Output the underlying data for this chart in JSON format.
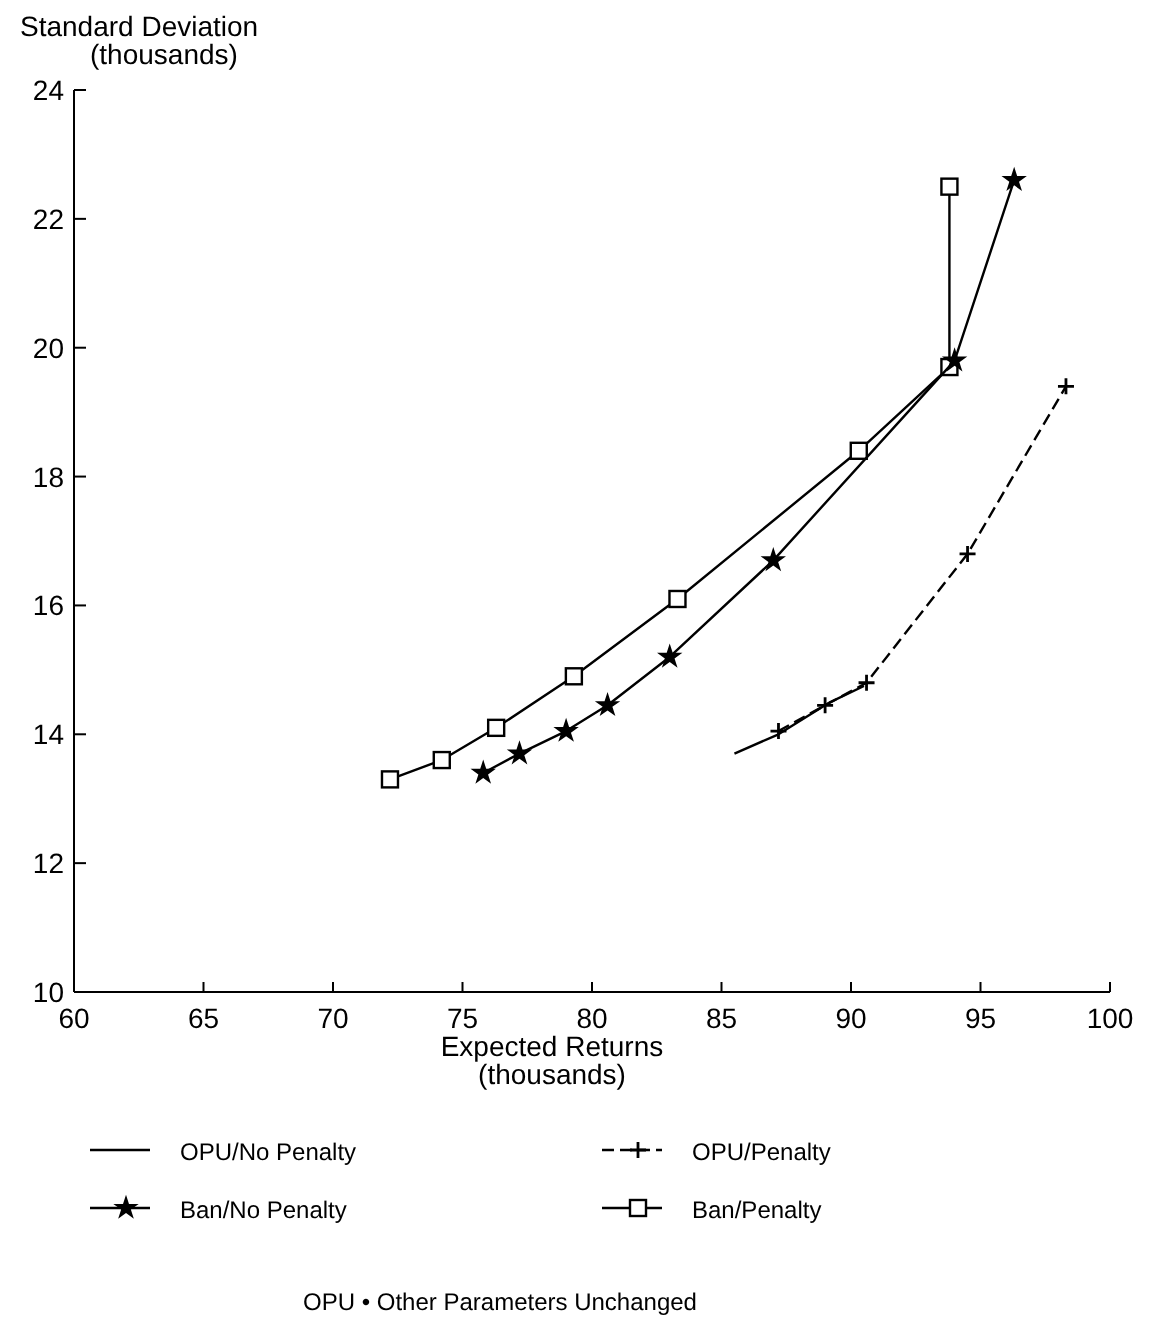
{
  "chart_data": {
    "type": "line",
    "xlabel": "Expected Returns\n(thousands)",
    "ylabel": "Standard Deviation\n(thousands)",
    "xlim": [
      60,
      100
    ],
    "xticks": [
      60,
      65,
      70,
      75,
      80,
      85,
      90,
      95,
      100
    ],
    "ylim": [
      10,
      24
    ],
    "yticks": [
      10,
      12,
      14,
      16,
      18,
      20,
      22,
      24
    ],
    "grid": false,
    "legend": "bottom",
    "annotations": [
      "OPU • Other Parameters Unchanged"
    ],
    "series": [
      {
        "name": "OPU/No Penalty",
        "color": "#000000",
        "marker": "none",
        "line_style": "solid",
        "x": [
          85.5,
          87.2,
          89.2,
          90.5
        ],
        "values": [
          13.7,
          14.0,
          14.5,
          14.75
        ]
      },
      {
        "name": "OPU/Penalty",
        "color": "#000000",
        "marker": "cross",
        "line_style": "dashed",
        "x": [
          87.2,
          89,
          90.6,
          94.5,
          98.3
        ],
        "values": [
          14.05,
          14.45,
          14.8,
          16.8,
          19.4
        ]
      },
      {
        "name": "Ban/No Penalty",
        "color": "#000000",
        "marker": "star",
        "line_style": "solid",
        "x": [
          75.8,
          77.2,
          79,
          80.6,
          83,
          87,
          94,
          96.3
        ],
        "values": [
          13.4,
          13.7,
          14.05,
          14.45,
          15.2,
          16.7,
          19.8,
          22.6
        ]
      },
      {
        "name": "Ban/Penalty",
        "color": "#000000",
        "marker": "square",
        "line_style": "solid",
        "x": [
          72.2,
          74.2,
          76.3,
          79.3,
          83.3,
          90.3,
          93.8,
          93.8
        ],
        "values": [
          13.3,
          13.6,
          14.1,
          14.9,
          16.1,
          18.4,
          19.7,
          22.5
        ]
      }
    ]
  }
}
